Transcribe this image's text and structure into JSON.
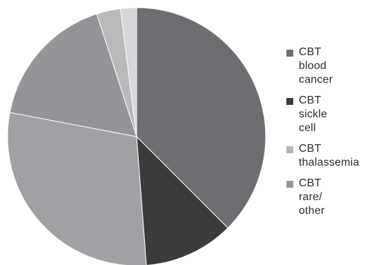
{
  "chart_data": {
    "type": "pie",
    "title": "",
    "slices": [
      {
        "label": "CBT blood cancer",
        "value": 37.5,
        "color": "#6d6e71"
      },
      {
        "label": "CBT sickle cell",
        "value": 11.3,
        "color": "#3b3b3c"
      },
      {
        "label": "CBT thalassemia",
        "value": 29.2,
        "color": "#a0a1a4"
      },
      {
        "label": "CBT rare/ other",
        "value": 17.0,
        "color": "#939598"
      },
      {
        "label": "",
        "value": 3.0,
        "color": "#b9babc"
      },
      {
        "label": "",
        "value": 2.0,
        "color": "#d6d7d8"
      }
    ],
    "legend": {
      "placement": "right",
      "entries": [
        {
          "label": "CBT\nblood\ncancer",
          "color": "#6d6e71"
        },
        {
          "label": "CBT\nsickle\ncell",
          "color": "#3b3b3c"
        },
        {
          "label": "CBT\nthalassemia",
          "color": "#b3b4b6"
        },
        {
          "label": "CBT\nrare/\nother",
          "color": "#939598"
        }
      ]
    }
  }
}
